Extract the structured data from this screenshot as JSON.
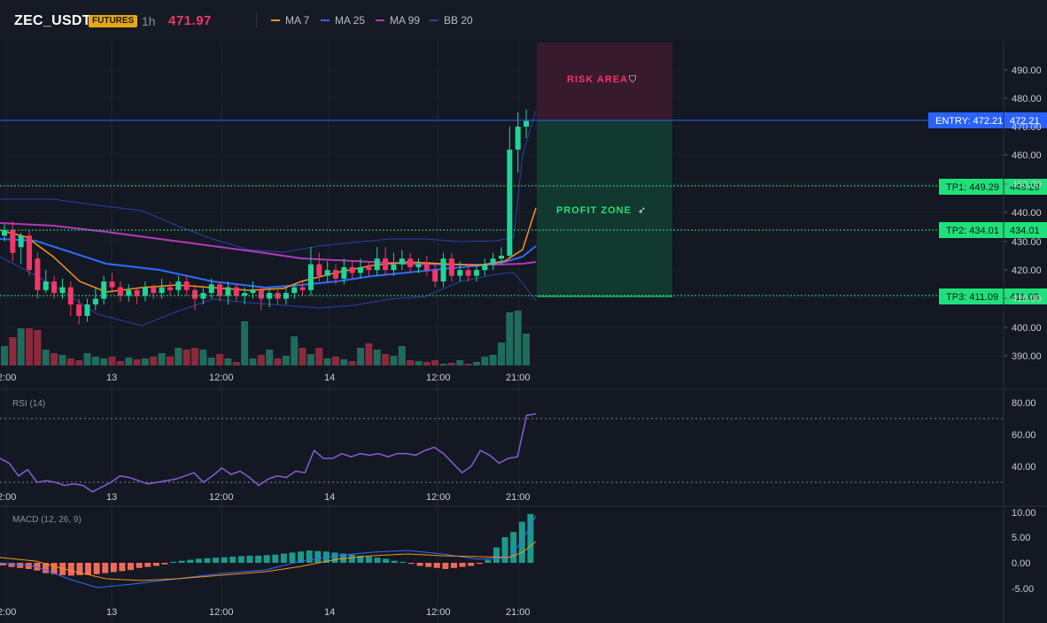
{
  "header": {
    "symbol": "ZEC_USDT",
    "badge": "FUTURES",
    "timeframe": "1h",
    "last_price": "471.97",
    "legend": [
      {
        "label": "MA 7",
        "color": "#f7931a"
      },
      {
        "label": "MA 25",
        "color": "#2f6bff"
      },
      {
        "label": "MA 99",
        "color": "#b03ab8"
      },
      {
        "label": "BB 20",
        "color": "#2d3ea8"
      }
    ]
  },
  "zones": {
    "risk_label": "RISK AREA",
    "profit_label": "PROFIT ZONE"
  },
  "levels": {
    "entry_label": "ENTRY: 472.21",
    "entry_value": "472.21",
    "tp1_label": "TP1: 449.29",
    "tp1_value": "449.29",
    "tp2_label": "TP2: 434.01",
    "tp2_value": "434.01",
    "tp3_label": "TP3: 411.09",
    "tp3_value": "411.09"
  },
  "axes": {
    "price_ticks": [
      "490.00",
      "480.00",
      "470.00",
      "460.00",
      "450.00",
      "440.00",
      "430.00",
      "420.00",
      "410.00",
      "400.00",
      "390.00"
    ],
    "time_ticks": [
      "2:00",
      "13",
      "12:00",
      "14",
      "12:00",
      "21:00"
    ],
    "rsi_ticks": [
      "80.00",
      "60.00",
      "40.00"
    ],
    "macd_ticks": [
      "10.00",
      "5.00",
      "0.00",
      "-5.00"
    ]
  },
  "panes": {
    "rsi_title": "RSI (14)",
    "macd_title": "MACD (12, 26, 9)"
  },
  "colors": {
    "up": "#22d49a",
    "down": "#f23668",
    "entry": "#2962ff",
    "tp": "#1fe07a"
  }
}
